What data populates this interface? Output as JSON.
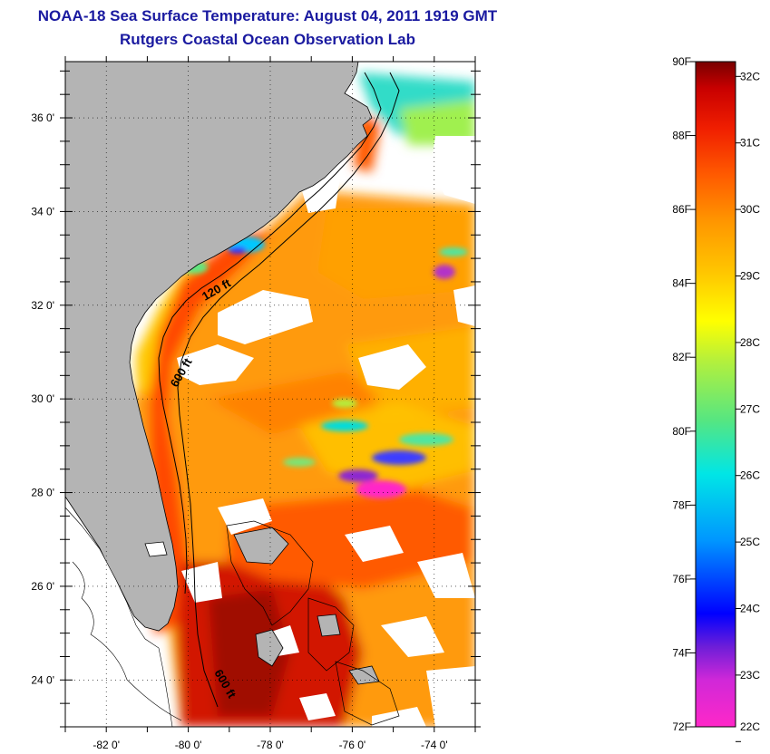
{
  "header": {
    "title": "NOAA-18 Sea Surface Temperature:  August 04, 2011 1919 GMT",
    "subtitle": "Rutgers Coastal Ocean Observation Lab"
  },
  "map": {
    "lat_labels": [
      "36 0'",
      "34 0'",
      "32 0'",
      "30 0'",
      "28 0'",
      "26 0'",
      "24 0'"
    ],
    "lon_labels": [
      "-82 0'",
      "-80 0'",
      "-78 0'",
      "-76 0'",
      "-74 0'"
    ],
    "lat_values": [
      36,
      34,
      32,
      30,
      28,
      26,
      24
    ],
    "lon_values": [
      -82,
      -80,
      -78,
      -76,
      -74
    ],
    "lat_range": [
      23,
      37.2
    ],
    "lon_range": [
      -83,
      -73
    ],
    "contour_labels": [
      "120 ft",
      "600 ft",
      "600 ft"
    ],
    "land_color": "#b4b4b4",
    "cloud_color": "#ffffff"
  },
  "colorbar": {
    "fahrenheit_labels": [
      "90F",
      "88F",
      "86F",
      "84F",
      "82F",
      "80F",
      "78F",
      "76F",
      "74F",
      "72F"
    ],
    "fahrenheit_values": [
      90,
      88,
      86,
      84,
      82,
      80,
      78,
      76,
      74,
      72
    ],
    "celsius_labels": [
      "32C",
      "31C",
      "30C",
      "29C",
      "28C",
      "27C",
      "26C",
      "25C",
      "24C",
      "23C",
      "22C"
    ],
    "celsius_values": [
      32,
      31,
      30,
      29,
      28,
      27,
      26,
      25,
      24,
      23,
      22
    ],
    "range_F": [
      72,
      90
    ],
    "colors": [
      "#ff28c8",
      "#8c28d2",
      "#0000ff",
      "#0096ff",
      "#00e6e6",
      "#55e682",
      "#b4f03c",
      "#ffff00",
      "#ffc800",
      "#ff9600",
      "#ff5a00",
      "#f01e00",
      "#c80000",
      "#780000"
    ]
  }
}
